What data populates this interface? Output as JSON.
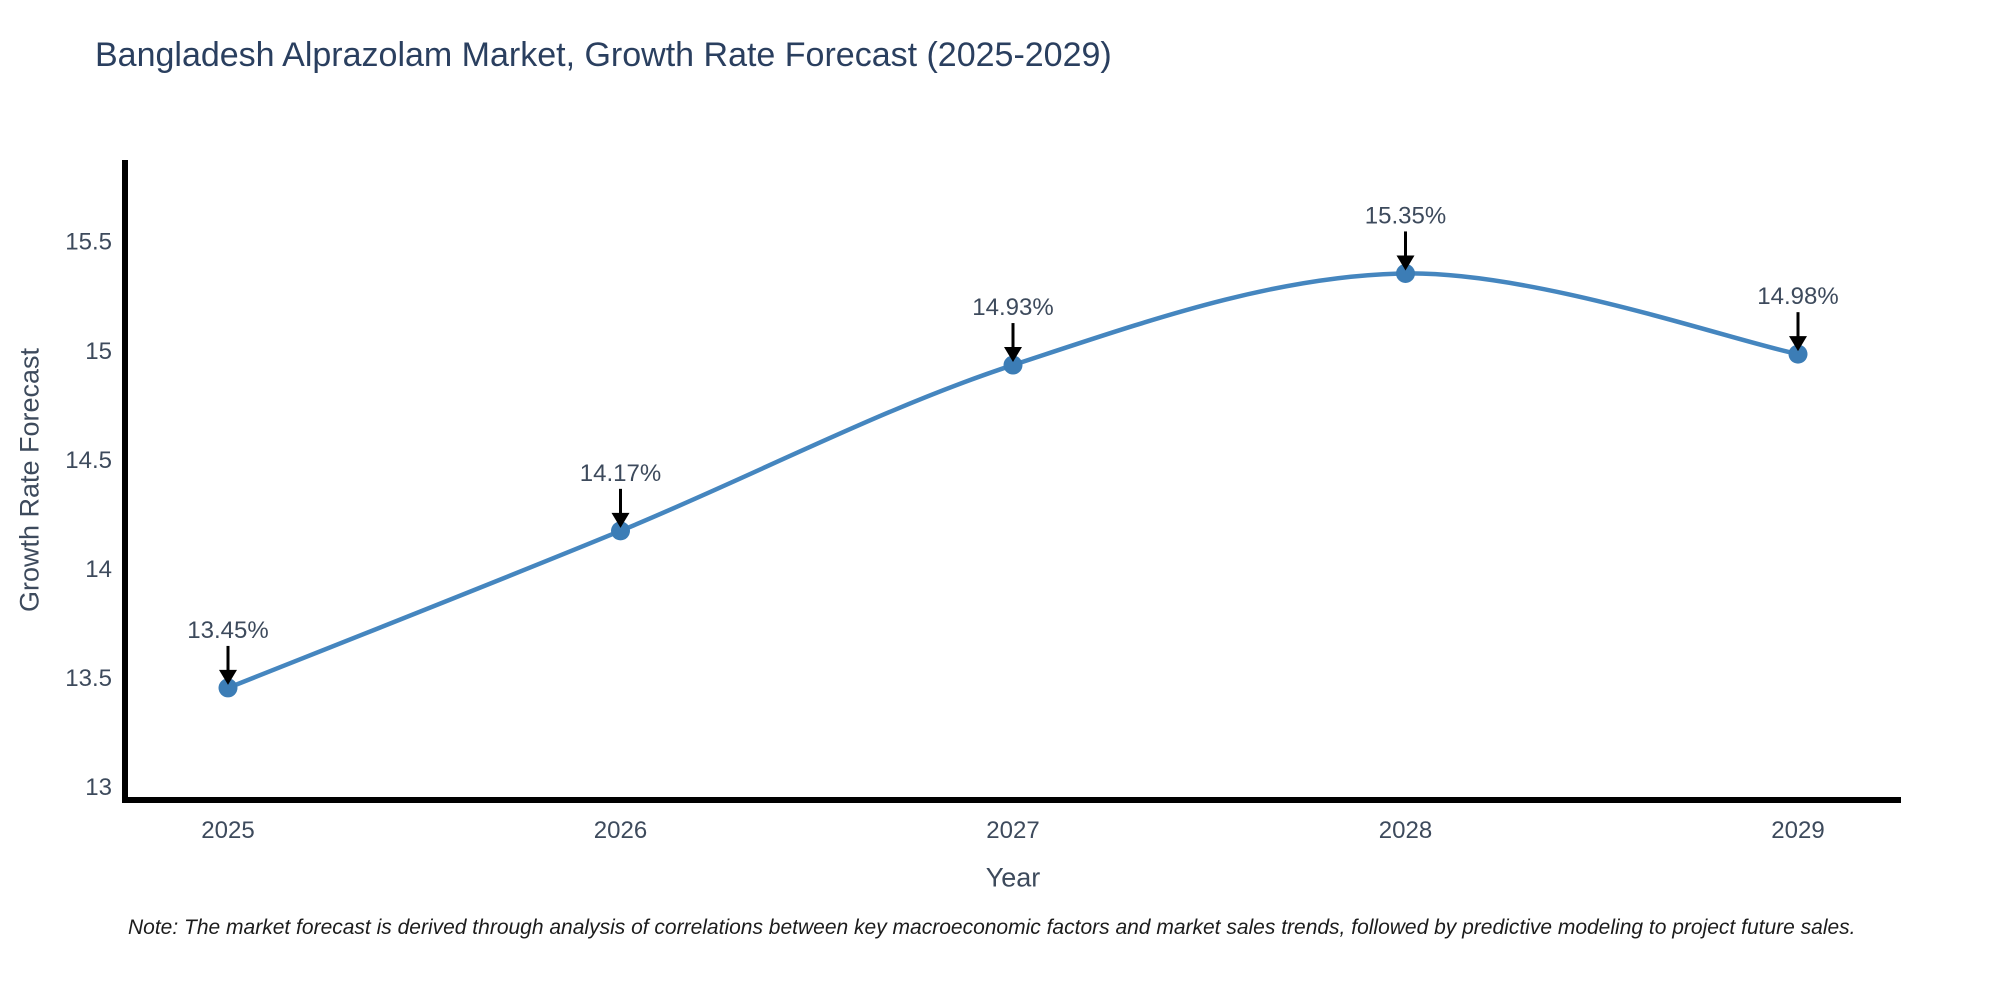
{
  "chart_data": {
    "type": "line",
    "title": "Bangladesh Alprazolam Market, Growth Rate Forecast (2025-2029)",
    "xlabel": "Year",
    "ylabel": "Growth Rate Forecast",
    "categories": [
      "2025",
      "2026",
      "2027",
      "2028",
      "2029"
    ],
    "values": [
      13.45,
      14.17,
      14.93,
      15.35,
      14.98
    ],
    "point_labels": [
      "13.45%",
      "14.17%",
      "14.93%",
      "15.35%",
      "14.98%"
    ],
    "series_name": "Growth Rate Forecast",
    "yticks": [
      13,
      13.5,
      14,
      14.5,
      15,
      15.5
    ],
    "ytick_labels": [
      "13",
      "13.5",
      "14",
      "14.5",
      "15",
      "15.5"
    ],
    "ylim": [
      12.95,
      15.87
    ],
    "grid": false,
    "legend": "none",
    "line_style": "smooth-spline",
    "marker": "circle",
    "note": "Note: The market forecast is derived through analysis of correlations between key macroeconomic factors and market sales trends, followed by predictive modeling to project future sales.",
    "colors": {
      "line": "#4586bf",
      "marker": "#3c7db6",
      "arrow": "#000000",
      "axis": "#000000",
      "tick_text": "#3d4a5c",
      "title_text": "#2a3f5f",
      "note_text": "#1c1c1c"
    }
  }
}
